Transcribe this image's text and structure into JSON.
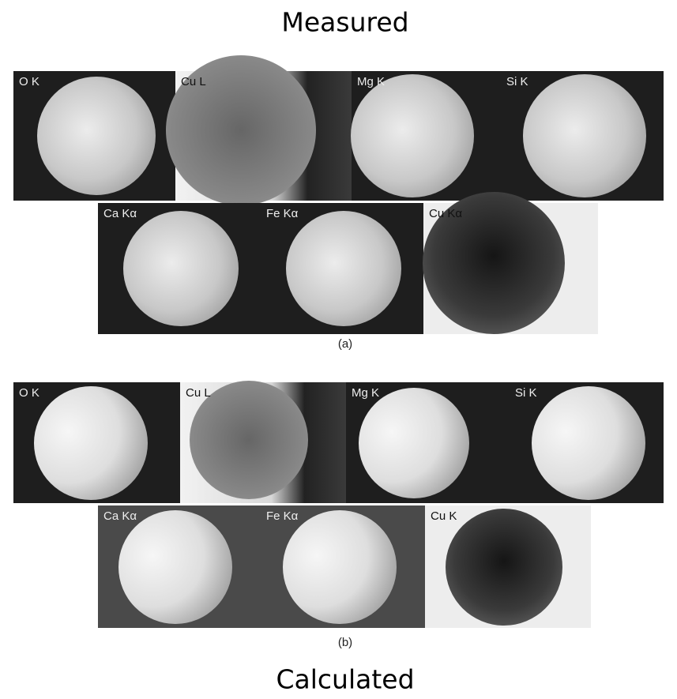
{
  "title_top": "Measured",
  "figures": [
    {
      "panels": [
        {
          "label": "O K"
        },
        {
          "label": "Cu L"
        },
        {
          "label": "Mg K"
        },
        {
          "label": "Si K"
        },
        {
          "label": "Ca Kα"
        },
        {
          "label": "Fe Kα"
        },
        {
          "label": "Cu Kα"
        }
      ],
      "caption": "(a)"
    },
    {
      "panels": [
        {
          "label": "O K"
        },
        {
          "label": "Cu L"
        },
        {
          "label": "Mg K"
        },
        {
          "label": "Si K"
        },
        {
          "label": "Ca Kα"
        },
        {
          "label": "Fe Kα"
        },
        {
          "label": "Cu K"
        }
      ],
      "caption": "(b)"
    }
  ],
  "title_bottom": "Calculated"
}
